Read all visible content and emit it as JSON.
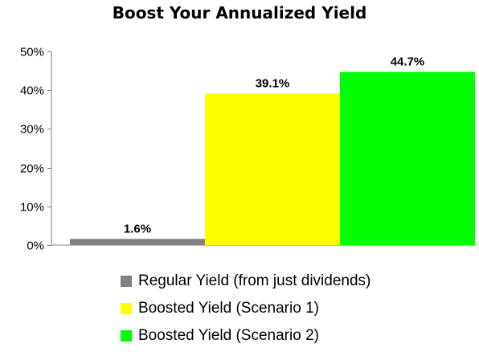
{
  "chart_data": {
    "type": "bar",
    "title": "Boost Your Annualized Yield",
    "xlabel": "",
    "ylabel": "",
    "ylim": [
      0,
      50
    ],
    "yticks": [
      0,
      10,
      20,
      30,
      40,
      50
    ],
    "ytick_labels": [
      "0%",
      "10%",
      "20%",
      "30%",
      "40%",
      "50%"
    ],
    "grid": false,
    "legend_position": "bottom",
    "series": [
      {
        "name": "Regular Yield (from just dividends)",
        "value": 1.6,
        "label": "1.6%",
        "color": "#808080"
      },
      {
        "name": "Boosted Yield (Scenario 1)",
        "value": 39.1,
        "label": "39.1%",
        "color": "#FFFF00"
      },
      {
        "name": "Boosted Yield (Scenario 2)",
        "value": 44.7,
        "label": "44.7%",
        "color": "#00FF00"
      }
    ]
  }
}
